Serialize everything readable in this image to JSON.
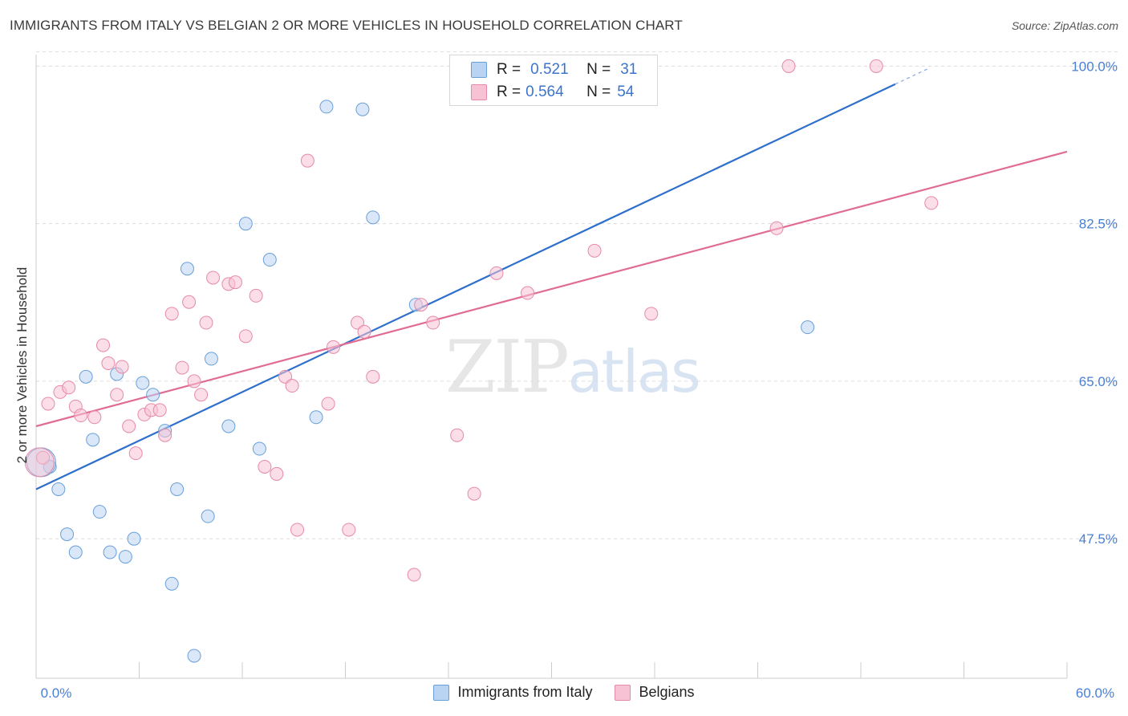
{
  "header": {
    "title": "IMMIGRANTS FROM ITALY VS BELGIAN 2 OR MORE VEHICLES IN HOUSEHOLD CORRELATION CHART",
    "source": "Source: ZipAtlas.com"
  },
  "watermark": {
    "zip": "ZIP",
    "atlas": "atlas"
  },
  "legend": {
    "series": [
      {
        "r_label": "R =",
        "r_value": "0.521",
        "n_label": "N =",
        "n_value": "31"
      },
      {
        "r_label": "R =",
        "r_value": "0.564",
        "n_label": "N =",
        "n_value": "54"
      }
    ]
  },
  "colors": {
    "italy_fill": "#b9d3f2",
    "italy_stroke": "#6a9fd8",
    "italy_line": "#2e6fcc",
    "belgian_fill": "#f7c2d3",
    "belgian_stroke": "#e58aa8",
    "belgian_line": "#e06b94",
    "grid": "#dcdcdc",
    "tick_text": "#4a7fd4"
  },
  "chart_data": {
    "type": "scatter",
    "title": "IMMIGRANTS FROM ITALY VS BELGIAN 2 OR MORE VEHICLES IN HOUSEHOLD CORRELATION CHART",
    "xlabel": "",
    "ylabel": "2 or more Vehicles in Household",
    "xlim": [
      0,
      60
    ],
    "ylim": [
      32,
      102
    ],
    "x_tick_labels": [
      "0.0%",
      "60.0%"
    ],
    "y_ticks": [
      47.5,
      65.0,
      82.5,
      100.0
    ],
    "y_tick_labels": [
      "47.5%",
      "65.0%",
      "82.5%",
      "100.0%"
    ],
    "grid": true,
    "legend_position": "bottom",
    "series": [
      {
        "name": "Immigrants from Italy",
        "points": [
          [
            0.8,
            55.5
          ],
          [
            1.3,
            53.0
          ],
          [
            1.8,
            48.0
          ],
          [
            2.3,
            46.0
          ],
          [
            2.9,
            65.5
          ],
          [
            3.3,
            58.5
          ],
          [
            3.7,
            50.5
          ],
          [
            4.3,
            46.0
          ],
          [
            4.7,
            65.8
          ],
          [
            5.2,
            45.5
          ],
          [
            5.7,
            47.5
          ],
          [
            6.2,
            64.8
          ],
          [
            6.8,
            63.5
          ],
          [
            7.5,
            59.5
          ],
          [
            7.9,
            42.5
          ],
          [
            8.2,
            53.0
          ],
          [
            8.8,
            77.5
          ],
          [
            9.2,
            34.5
          ],
          [
            10.0,
            50.0
          ],
          [
            10.2,
            67.5
          ],
          [
            11.2,
            60.0
          ],
          [
            12.2,
            82.5
          ],
          [
            13.0,
            57.5
          ],
          [
            13.6,
            78.5
          ],
          [
            16.3,
            61.0
          ],
          [
            16.9,
            95.5
          ],
          [
            19.0,
            95.2
          ],
          [
            19.6,
            83.2
          ],
          [
            22.1,
            73.5
          ],
          [
            44.9,
            71.0
          ],
          [
            0.3,
            56.0
          ]
        ],
        "trend": {
          "x_start": 0,
          "y_start": 53.0,
          "x_end": 50.0,
          "y_end": 98.0
        }
      },
      {
        "name": "Belgians",
        "points": [
          [
            0.4,
            56.5
          ],
          [
            0.7,
            62.5
          ],
          [
            1.4,
            63.8
          ],
          [
            1.9,
            64.3
          ],
          [
            2.3,
            62.2
          ],
          [
            2.6,
            61.2
          ],
          [
            3.4,
            61.0
          ],
          [
            3.9,
            69.0
          ],
          [
            4.2,
            67.0
          ],
          [
            4.7,
            63.5
          ],
          [
            5.0,
            66.6
          ],
          [
            5.4,
            60.0
          ],
          [
            5.8,
            57.0
          ],
          [
            6.3,
            61.3
          ],
          [
            6.7,
            61.8
          ],
          [
            7.2,
            61.8
          ],
          [
            7.5,
            59.0
          ],
          [
            7.9,
            72.5
          ],
          [
            8.5,
            66.5
          ],
          [
            8.9,
            73.8
          ],
          [
            9.2,
            65.0
          ],
          [
            9.6,
            63.5
          ],
          [
            9.9,
            71.5
          ],
          [
            10.3,
            76.5
          ],
          [
            11.2,
            75.8
          ],
          [
            11.6,
            76.0
          ],
          [
            12.2,
            70.0
          ],
          [
            12.8,
            74.5
          ],
          [
            13.3,
            55.5
          ],
          [
            14.0,
            54.7
          ],
          [
            14.5,
            65.5
          ],
          [
            14.9,
            64.5
          ],
          [
            15.2,
            48.5
          ],
          [
            15.8,
            89.5
          ],
          [
            17.0,
            62.5
          ],
          [
            17.3,
            68.8
          ],
          [
            18.2,
            48.5
          ],
          [
            18.7,
            71.5
          ],
          [
            19.1,
            70.5
          ],
          [
            19.6,
            65.5
          ],
          [
            22.0,
            43.5
          ],
          [
            22.4,
            73.5
          ],
          [
            23.1,
            71.5
          ],
          [
            24.5,
            59.0
          ],
          [
            25.5,
            52.5
          ],
          [
            26.8,
            77.0
          ],
          [
            28.6,
            74.8
          ],
          [
            32.5,
            79.5
          ],
          [
            35.8,
            72.5
          ],
          [
            43.1,
            82.0
          ],
          [
            43.8,
            100.0
          ],
          [
            48.9,
            100.0
          ],
          [
            52.1,
            84.8
          ],
          [
            0.2,
            56.0
          ]
        ],
        "trend": {
          "x_start": 0,
          "y_start": 60.0,
          "x_end": 60.0,
          "y_end": 90.5
        }
      }
    ]
  }
}
